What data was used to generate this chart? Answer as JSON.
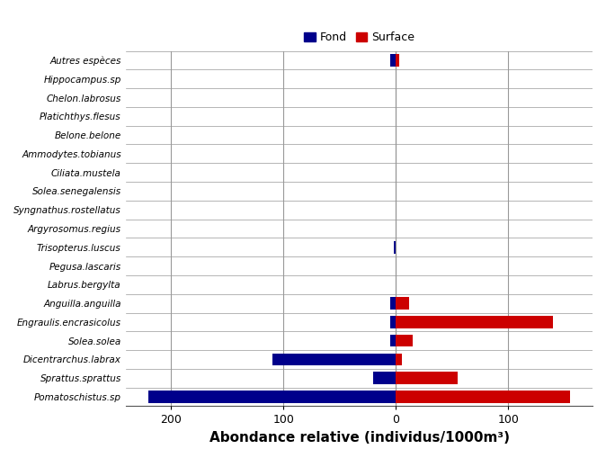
{
  "species": [
    "Autres espèces",
    "Hippocampus.sp",
    "Chelon.labrosus",
    "Platichthys.flesus",
    "Belone.belone",
    "Ammodytes.tobianus",
    "Ciliata.mustela",
    "Solea.senegalensis",
    "Syngnathus.rostellatus",
    "Argyrosomus.regius",
    "Trisopterus.luscus",
    "Pegusa.lascaris",
    "Labrus.bergylta",
    "Anguilla.anguilla",
    "Engraulis.encrasicolus",
    "Solea.solea",
    "Dicentrarchus.labrax",
    "Sprattus.sprattus",
    "Pomatoschistus.sp"
  ],
  "fond_values": [
    -5,
    0,
    0,
    0,
    0,
    0,
    0,
    0,
    0,
    0,
    -2,
    0,
    0,
    -5,
    -5,
    -5,
    -110,
    -20,
    -220
  ],
  "surface_values": [
    3,
    0,
    0,
    0,
    0,
    0,
    0,
    0,
    0,
    0,
    0,
    0,
    0,
    12,
    140,
    15,
    5,
    55,
    155
  ],
  "fond_color": "#00008B",
  "surface_color": "#CC0000",
  "xlabel": "Abondance relative (individus/1000m³)",
  "xlabel_fontsize": 11,
  "legend_fond": "Fond",
  "legend_surface": "Surface",
  "xlim": [
    -240,
    175
  ],
  "xticks": [
    -200,
    -100,
    0,
    100
  ],
  "xticklabels": [
    "200",
    "100",
    "0",
    "100"
  ],
  "grid_color": "#999999",
  "bar_height": 0.65,
  "background_color": "#ffffff",
  "font_style": "italic",
  "ytick_fontsize": 7.5,
  "xtick_fontsize": 9
}
